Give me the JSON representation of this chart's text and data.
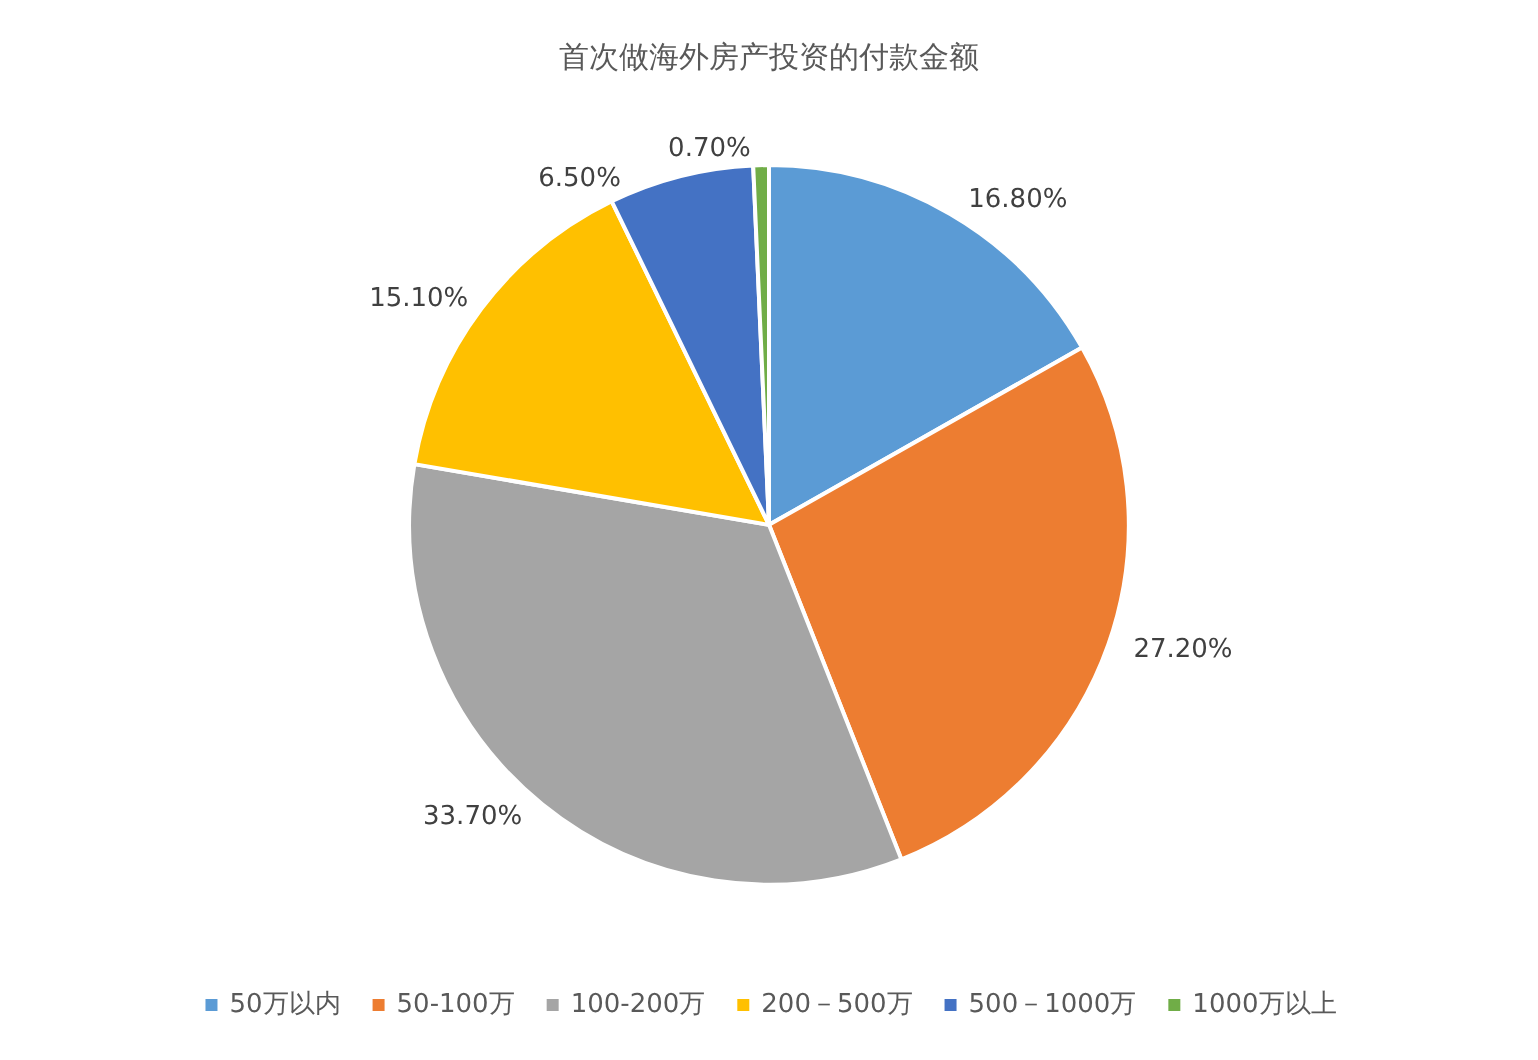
{
  "chart_data": {
    "type": "pie",
    "title": "首次做海外房产投资的付款金额",
    "categories": [
      "50万以内",
      "50-100万",
      "100-200万",
      "200－500万",
      "500－1000万",
      "1000万以上"
    ],
    "values": [
      16.8,
      27.2,
      33.7,
      15.1,
      6.5,
      0.7
    ],
    "value_labels": [
      "16.80%",
      "27.20%",
      "33.70%",
      "15.10%",
      "6.50%",
      "0.70%"
    ],
    "colors": [
      "#5b9bd5",
      "#ed7d31",
      "#a5a5a5",
      "#ffc000",
      "#4472c4",
      "#70ad47"
    ],
    "legend": "bottom"
  }
}
